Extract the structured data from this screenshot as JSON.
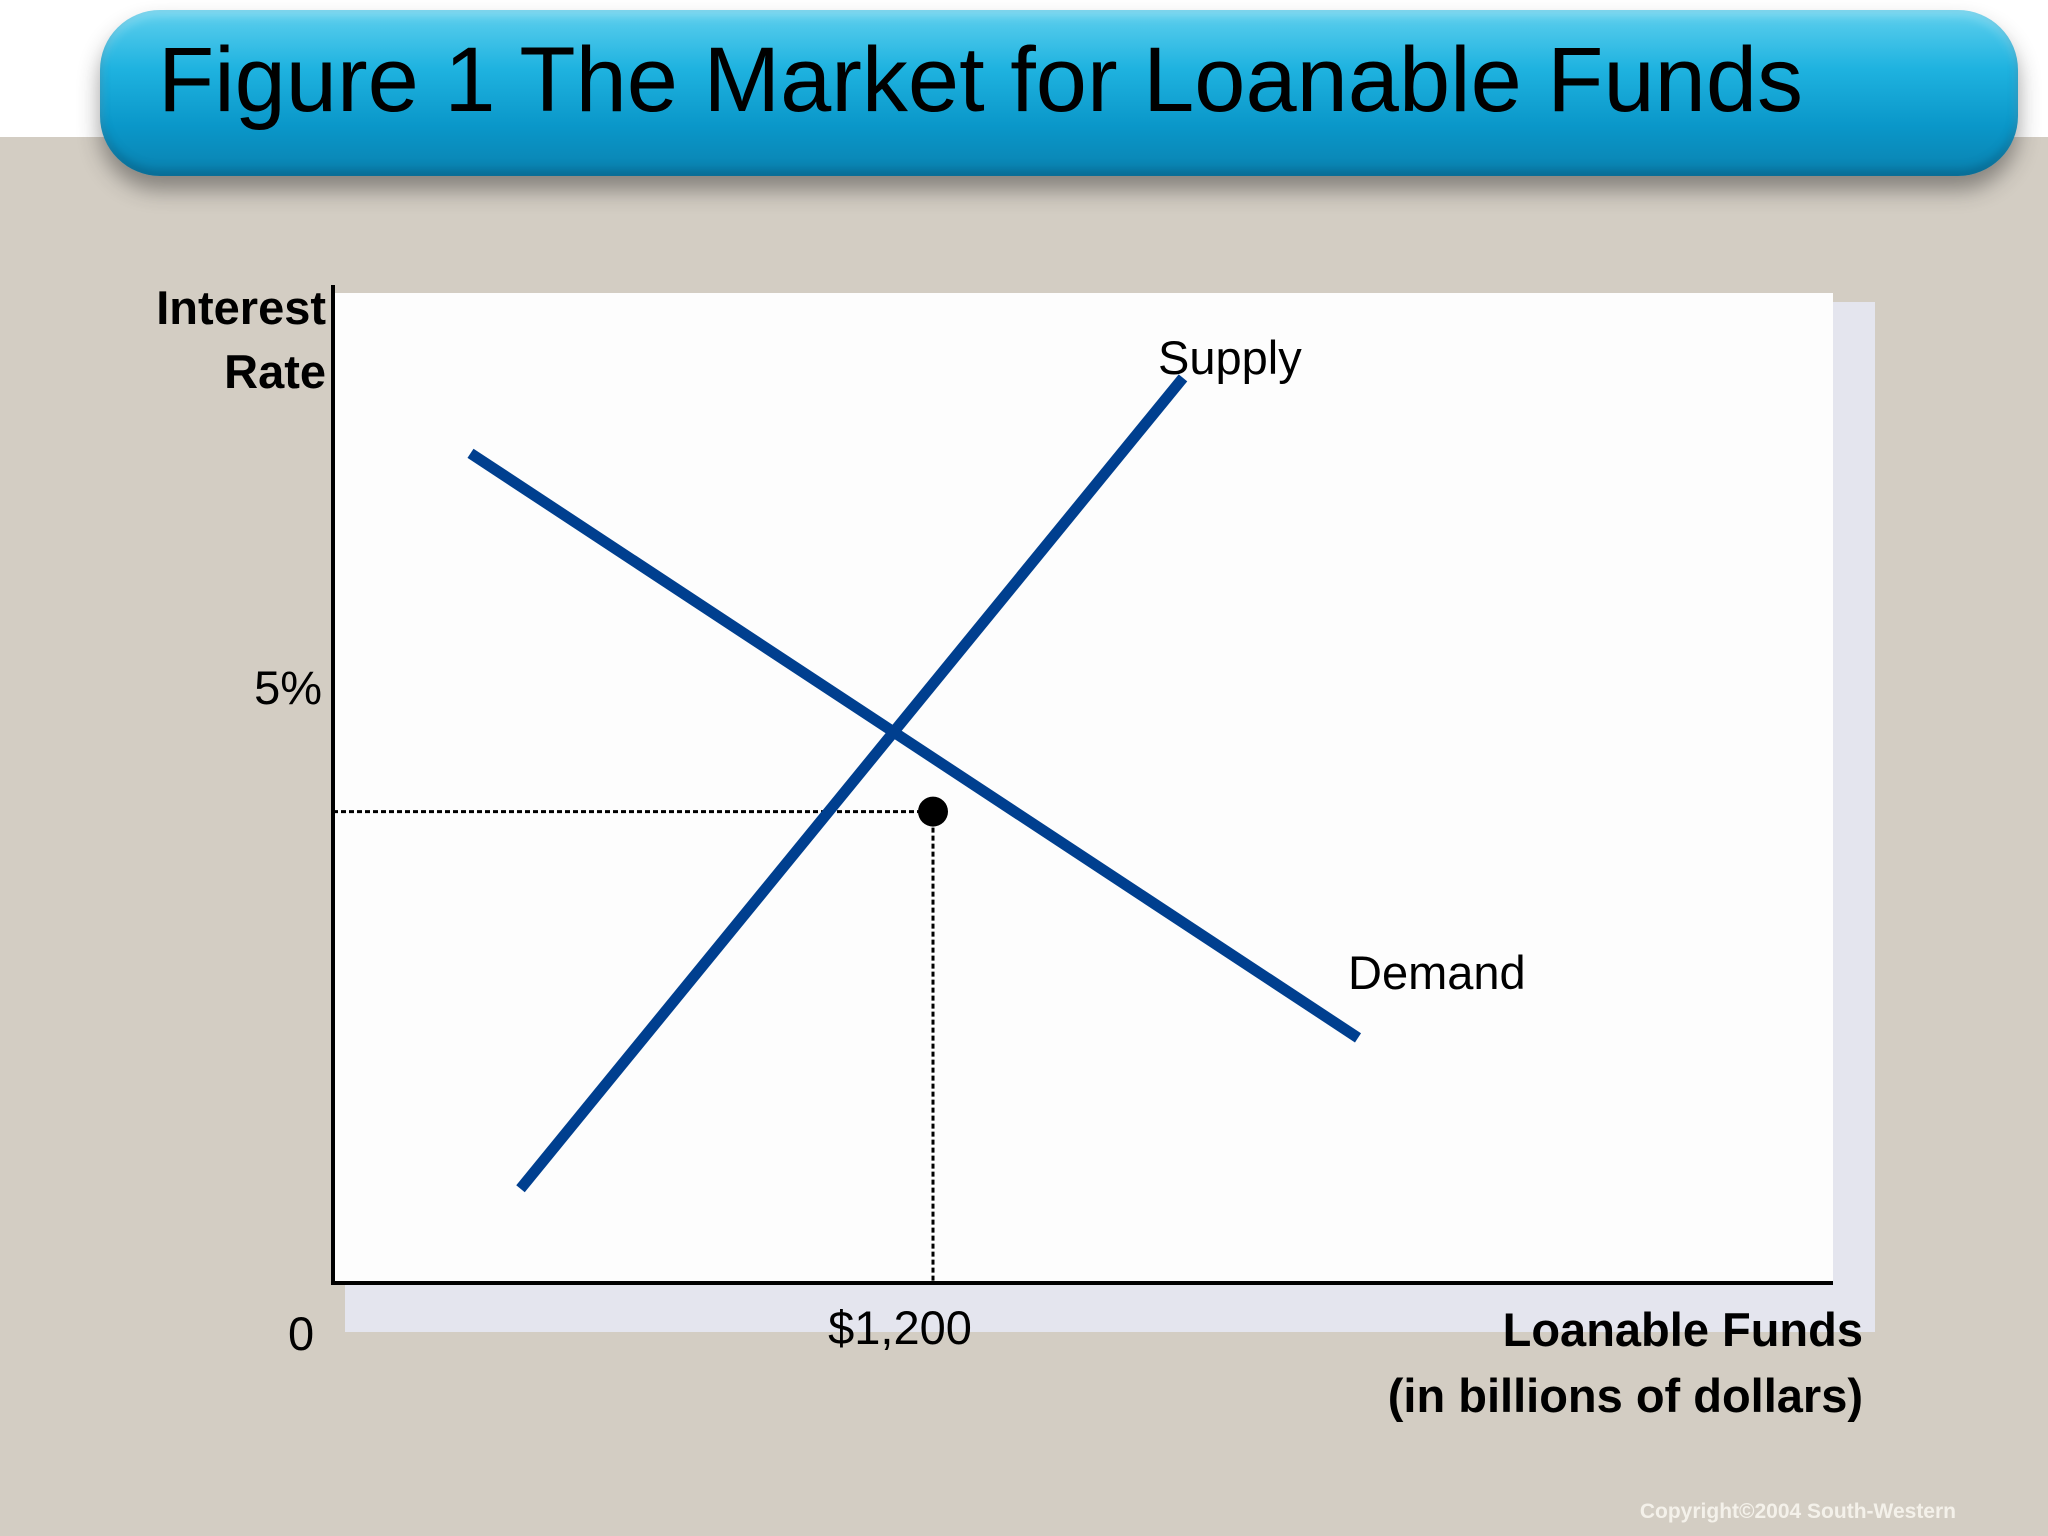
{
  "slide": {
    "title": "Figure 1 The Market for Loanable Funds",
    "copyright": "Copyright©2004  South-Western",
    "background_color": "#d3cdc3",
    "banner_color": "#1fb3e0",
    "title_color": "#f7f3cf"
  },
  "chart_data": {
    "type": "line",
    "title": "Figure 1 The Market for Loanable Funds",
    "xlabel": "Loanable Funds (in billions of dollars)",
    "xlabel_lines": [
      "Loanable Funds",
      "(in billions of dollars)"
    ],
    "ylabel": "Interest Rate",
    "ylabel_lines": [
      "Interest",
      "Rate"
    ],
    "origin_label": "0",
    "line_color": "#003f8f",
    "grid": false,
    "x_ticks": [
      {
        "value": 1200,
        "label": "$1,200"
      }
    ],
    "y_ticks": [
      {
        "value": 5,
        "label": "5%"
      }
    ],
    "xlim": [
      0,
      3000
    ],
    "ylim": [
      0,
      10.5
    ],
    "series": [
      {
        "name": "Supply",
        "points": [
          [
            375,
            1.0
          ],
          [
            1700,
            9.6
          ]
        ]
      },
      {
        "name": "Demand",
        "points": [
          [
            275,
            8.8
          ],
          [
            2050,
            2.6
          ]
        ]
      }
    ],
    "equilibrium": {
      "x": 1200,
      "y": 5,
      "guides": "dashed"
    }
  }
}
